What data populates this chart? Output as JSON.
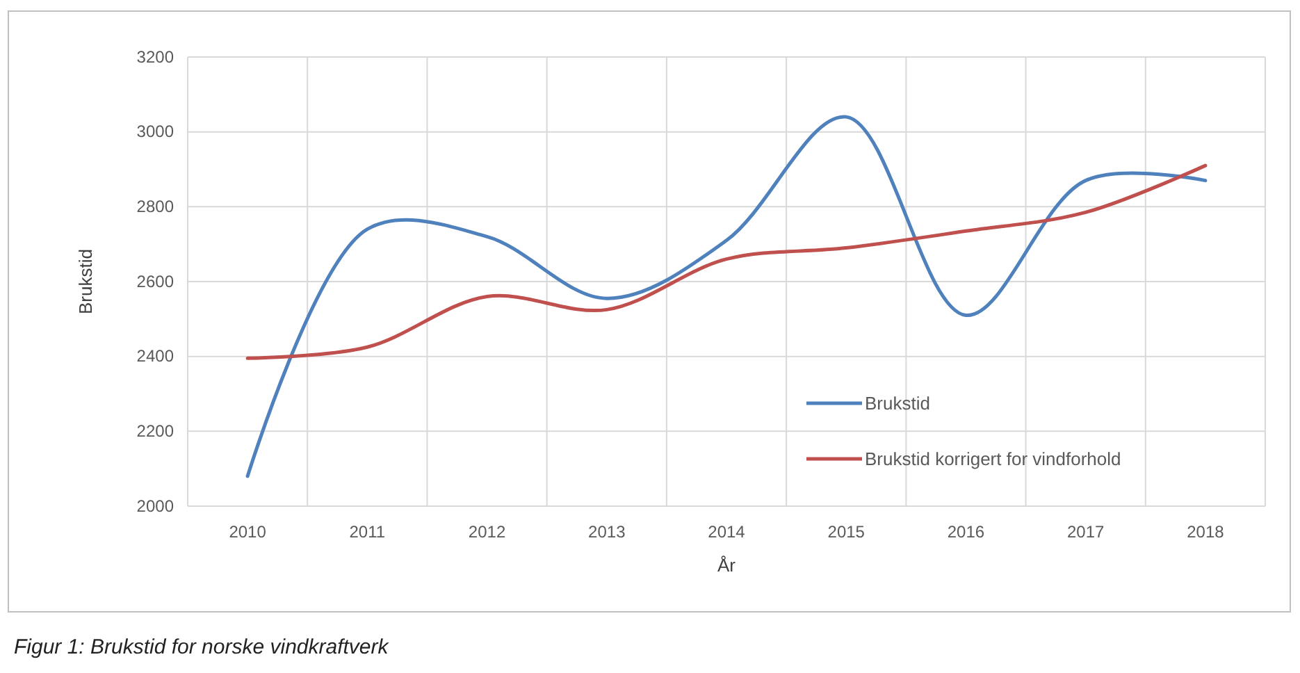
{
  "chart_data": {
    "type": "line",
    "categories": [
      "2010",
      "2011",
      "2012",
      "2013",
      "2014",
      "2015",
      "2016",
      "2017",
      "2018"
    ],
    "series": [
      {
        "name": "Brukstid",
        "color": "#4f81bd",
        "values": [
          2080,
          2740,
          2720,
          2555,
          2710,
          3040,
          2510,
          2870,
          2870
        ]
      },
      {
        "name": "Brukstid korrigert for vindforhold",
        "color": "#c0504d",
        "values": [
          2395,
          2425,
          2560,
          2525,
          2660,
          2690,
          2735,
          2785,
          2910
        ]
      }
    ],
    "ylim": [
      2000,
      3200
    ],
    "yticks": [
      2000,
      2200,
      2400,
      2600,
      2800,
      3000,
      3200
    ],
    "grid": true,
    "legend": "bottom right",
    "xlabel": "År",
    "ylabel": "Brukstid",
    "marker": "none",
    "line_style": "solid",
    "annotations": [
      "Figur 1: Brukstid for norske vindkraftverk"
    ]
  }
}
